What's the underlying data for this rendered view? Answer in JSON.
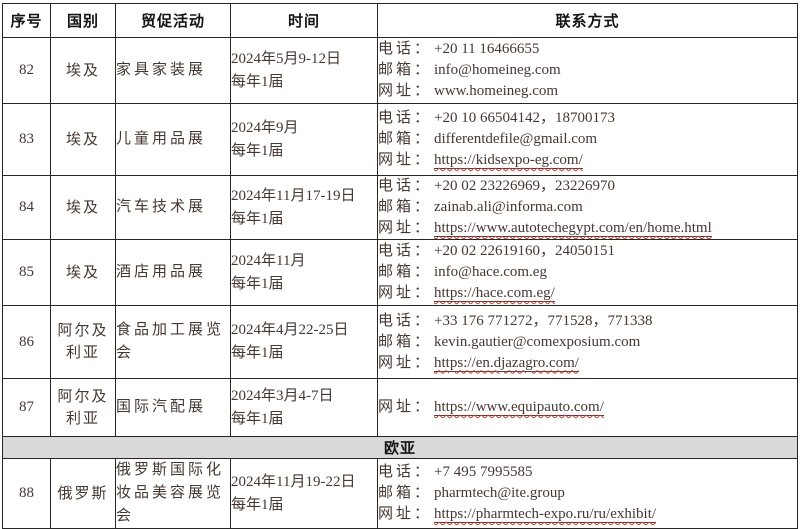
{
  "colors": {
    "background": "#ffffff",
    "text": "#453833",
    "header_text": "#141414",
    "border": "#262626",
    "section_bg": "#d9d9d9",
    "link_underline": "#4a3f3e",
    "spellcheck_red": "#c0392b"
  },
  "table": {
    "headers": [
      "序号",
      "国别",
      "贸促活动",
      "时间",
      "联系方式"
    ],
    "rows": [
      {
        "type": "data",
        "no": "82",
        "country": "埃及",
        "activity": "家具家装展",
        "time": [
          "2024年5月9-12日",
          "每年1届"
        ],
        "contacts": [
          {
            "label": "电话：",
            "value": "+20 11 16466655",
            "link": false
          },
          {
            "label": "邮箱：",
            "value": "info@homeineg.com",
            "link": false
          },
          {
            "label": "网址：",
            "value": "www.homeineg.com",
            "link": false
          }
        ]
      },
      {
        "type": "data",
        "no": "83",
        "country": "埃及",
        "activity": "儿童用品展",
        "time": [
          "2024年9月",
          "每年1届"
        ],
        "contacts": [
          {
            "label": "电话：",
            "value": "+20 10 66504142，18700173",
            "link": false
          },
          {
            "label": "邮箱：",
            "value": "differentdefile@gmail.com",
            "link": false
          },
          {
            "label": "网址：",
            "value": "https://kidsexpo-eg.com/",
            "link": true
          }
        ]
      },
      {
        "type": "data",
        "no": "84",
        "country": "埃及",
        "activity": "汽车技术展",
        "time": [
          "2024年11月17-19日",
          "每年1届"
        ],
        "contacts": [
          {
            "label": "电话：",
            "value": "+20 02 23226969，23226970",
            "link": false
          },
          {
            "label": "邮箱：",
            "value": "zainab.ali@informa.com",
            "link": false
          },
          {
            "label": "网址：",
            "value": "https://www.autotechegypt.com/en/home.html",
            "link": true
          }
        ]
      },
      {
        "type": "data",
        "no": "85",
        "country": "埃及",
        "activity": "酒店用品展",
        "time": [
          "2024年11月",
          "每年1届"
        ],
        "contacts": [
          {
            "label": "电话：",
            "value": "+20 02 22619160，24050151",
            "link": false
          },
          {
            "label": "邮箱：",
            "value": "info@hace.com.eg",
            "link": false
          },
          {
            "label": "网址：",
            "value": "https://hace.com.eg/",
            "link": true
          }
        ]
      },
      {
        "type": "data",
        "no": "86",
        "country": "阿尔及利亚",
        "activity": "食品加工展览会",
        "time": [
          "2024年4月22-25日",
          "每年1届"
        ],
        "contacts": [
          {
            "label": "电话：",
            "value": "+33 176 771272，771528，771338",
            "link": false
          },
          {
            "label": "邮箱：",
            "value": "kevin.gautier@comexposium.com",
            "link": false
          },
          {
            "label": "网址：",
            "value": "https://en.djazagro.com/",
            "link": true
          }
        ]
      },
      {
        "type": "data",
        "no": "87",
        "country": "阿尔及利亚",
        "activity": "国际汽配展",
        "time": [
          "2024年3月4-7日",
          "每年1届"
        ],
        "contacts": [
          {
            "label": "网址：",
            "value": "https://www.equipauto.com/",
            "link": true
          }
        ]
      },
      {
        "type": "section",
        "label": "欧亚"
      },
      {
        "type": "data",
        "no": "88",
        "country": "俄罗斯",
        "activity": "俄罗斯国际化妆品美容展览会",
        "time": [
          "2024年11月19-22日",
          "每年1届"
        ],
        "contacts": [
          {
            "label": "电话：",
            "value": "+7 495 7995585",
            "link": false
          },
          {
            "label": "邮箱：",
            "value": "pharmtech@ite.group",
            "link": false
          },
          {
            "label": "网址：",
            "value": "https://pharmtech-expo.ru/ru/exhibit/",
            "link": true
          }
        ]
      }
    ]
  }
}
